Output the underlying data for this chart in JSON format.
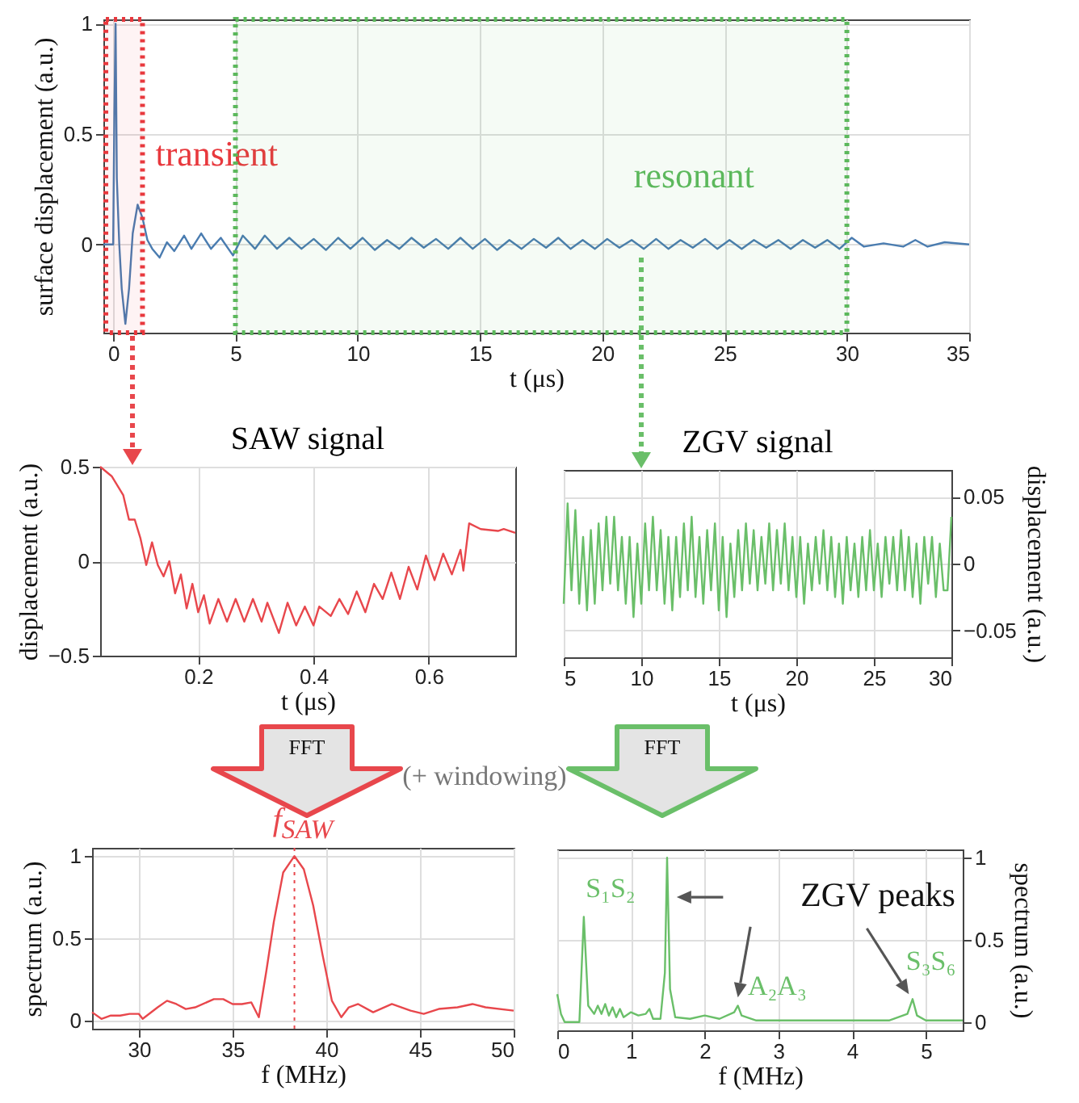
{
  "chart_data": [
    {
      "type": "line",
      "xlabel": "t (μs)",
      "ylabel": "surface displacement (a.u.)",
      "xlim": [
        -0.4,
        35
      ],
      "ylim": [
        -0.4,
        1.02
      ],
      "xticks": [
        0,
        5,
        10,
        15,
        20,
        25,
        30,
        35
      ],
      "yticks": [
        0,
        0.5,
        1
      ],
      "grid": true,
      "series": [
        {
          "color": "#4a7cb0",
          "x": [
            -0.4,
            0,
            0.05,
            0.1,
            0.15,
            0.25,
            0.35,
            0.5,
            0.65,
            0.8,
            1.0,
            1.2,
            1.4,
            1.6,
            1.9,
            2.2,
            2.5,
            2.9,
            3.2,
            3.6,
            4.0,
            4.4,
            4.9,
            5.3,
            5.8,
            6.2,
            6.7,
            7.2,
            7.7,
            8.2,
            8.7,
            9.2,
            9.7,
            10.2,
            10.7,
            11.2,
            11.7,
            12.2,
            12.7,
            13.2,
            13.7,
            14.2,
            14.7,
            15.2,
            15.7,
            16.2,
            16.7,
            17.2,
            17.7,
            18.2,
            18.7,
            19.2,
            19.7,
            20.2,
            20.7,
            21.2,
            21.7,
            22.2,
            22.7,
            23.2,
            23.7,
            24.2,
            24.7,
            25.2,
            25.7,
            26.2,
            26.7,
            27.2,
            27.7,
            28.2,
            28.7,
            29.2,
            29.7,
            30.2,
            30.7,
            31.5,
            32.3,
            32.8,
            33.3,
            34,
            35
          ],
          "values": [
            0,
            0,
            0.6,
            1.0,
            0.3,
            0,
            -0.2,
            -0.36,
            -0.2,
            0.05,
            0.18,
            0.12,
            0.02,
            -0.02,
            -0.06,
            0.01,
            -0.03,
            0.04,
            -0.02,
            0.05,
            -0.02,
            0.03,
            -0.05,
            0.04,
            -0.02,
            0.04,
            -0.02,
            0.03,
            -0.02,
            0.025,
            -0.025,
            0.03,
            -0.02,
            0.03,
            -0.025,
            0.02,
            -0.02,
            0.03,
            -0.015,
            0.025,
            -0.02,
            0.03,
            -0.02,
            0.025,
            -0.025,
            0.02,
            -0.02,
            0.025,
            -0.015,
            0.03,
            -0.02,
            0.02,
            -0.02,
            0.025,
            -0.015,
            0.02,
            -0.02,
            0.025,
            -0.02,
            0.02,
            -0.015,
            0.025,
            -0.02,
            0.02,
            -0.02,
            0.02,
            -0.015,
            0.02,
            -0.02,
            0.02,
            -0.015,
            0.02,
            -0.02,
            0.03,
            -0.01,
            0.005,
            -0.01,
            0.02,
            -0.01,
            0.01,
            0
          ]
        }
      ],
      "bands": [
        {
          "axis": "x",
          "from": -0.3,
          "to": 1.2,
          "label": "transient",
          "color": "#e8383d"
        },
        {
          "axis": "x",
          "from": 5,
          "to": 30,
          "label": "resonant",
          "color": "#5cb85c"
        }
      ]
    },
    {
      "type": "line",
      "title": "SAW signal",
      "xlabel": "t (μs)",
      "ylabel": "displacement (a.u.)",
      "xlim": [
        0.03,
        0.75
      ],
      "ylim": [
        -0.5,
        0.5
      ],
      "xticks": [
        0.2,
        0.4,
        0.6
      ],
      "yticks": [
        -0.5,
        0,
        0.5
      ],
      "grid": true,
      "annotations": [
        "FFT",
        "(+ windowing)"
      ],
      "series": [
        {
          "color": "#e8474c",
          "x": [
            0.03,
            0.05,
            0.07,
            0.08,
            0.09,
            0.1,
            0.11,
            0.12,
            0.13,
            0.14,
            0.15,
            0.16,
            0.17,
            0.18,
            0.19,
            0.2,
            0.21,
            0.22,
            0.235,
            0.25,
            0.265,
            0.28,
            0.295,
            0.31,
            0.32,
            0.34,
            0.355,
            0.37,
            0.385,
            0.4,
            0.41,
            0.43,
            0.445,
            0.46,
            0.475,
            0.49,
            0.505,
            0.52,
            0.535,
            0.55,
            0.565,
            0.58,
            0.595,
            0.61,
            0.625,
            0.64,
            0.655,
            0.66,
            0.67,
            0.69,
            0.72,
            0.73,
            0.75
          ],
          "values": [
            0.5,
            0.45,
            0.35,
            0.22,
            0.22,
            0.12,
            -0.02,
            0.1,
            -0.02,
            -0.08,
            0.0,
            -0.17,
            -0.07,
            -0.25,
            -0.12,
            -0.27,
            -0.18,
            -0.33,
            -0.2,
            -0.32,
            -0.2,
            -0.32,
            -0.2,
            -0.32,
            -0.22,
            -0.38,
            -0.22,
            -0.34,
            -0.24,
            -0.34,
            -0.24,
            -0.29,
            -0.2,
            -0.28,
            -0.16,
            -0.27,
            -0.12,
            -0.2,
            -0.06,
            -0.2,
            -0.03,
            -0.15,
            0.03,
            -0.1,
            0.04,
            -0.07,
            0.06,
            -0.05,
            0.2,
            0.17,
            0.16,
            0.17,
            0.15
          ]
        }
      ]
    },
    {
      "type": "line",
      "title": "ZGV signal",
      "xlabel": "t (μs)",
      "ylabel": "displacement (a.u.)",
      "xlim": [
        5,
        30
      ],
      "ylim": [
        -0.07,
        0.07
      ],
      "xticks": [
        5,
        10,
        15,
        20,
        25,
        30
      ],
      "yticks": [
        -0.05,
        0,
        0.05
      ],
      "grid": true,
      "annotations": [
        "FFT"
      ],
      "series": [
        {
          "color": "#6abf69",
          "x": [
            5,
            5.25,
            5.5,
            5.75,
            6,
            6.25,
            6.5,
            6.75,
            7,
            7.25,
            7.5,
            7.75,
            8,
            8.25,
            8.5,
            8.75,
            9,
            9.25,
            9.5,
            9.75,
            10,
            10.25,
            10.5,
            10.75,
            11,
            11.25,
            11.5,
            11.75,
            12,
            12.25,
            12.5,
            12.75,
            13,
            13.25,
            13.5,
            13.75,
            14,
            14.25,
            14.5,
            14.75,
            15,
            15.25,
            15.5,
            15.75,
            16,
            16.25,
            16.5,
            16.75,
            17,
            17.25,
            17.5,
            17.75,
            18,
            18.25,
            18.5,
            18.75,
            19,
            19.25,
            19.5,
            19.75,
            20,
            20.25,
            20.5,
            20.75,
            21,
            21.25,
            21.5,
            21.75,
            22,
            22.25,
            22.5,
            22.75,
            23,
            23.25,
            23.5,
            23.75,
            24,
            24.25,
            24.5,
            24.75,
            25,
            25.25,
            25.5,
            25.75,
            26,
            26.25,
            26.5,
            26.75,
            27,
            27.25,
            27.5,
            27.75,
            28,
            28.25,
            28.5,
            28.75,
            29,
            29.25,
            29.5,
            29.75,
            30
          ],
          "values": [
            -0.03,
            0.045,
            -0.02,
            0.04,
            -0.03,
            0.02,
            -0.035,
            0.025,
            -0.03,
            0.03,
            -0.02,
            0.035,
            -0.015,
            0.035,
            -0.02,
            0.02,
            -0.03,
            0.02,
            -0.04,
            0.015,
            -0.03,
            0.03,
            -0.02,
            0.035,
            -0.02,
            0.025,
            -0.03,
            0.02,
            -0.035,
            0.02,
            -0.025,
            0.03,
            -0.02,
            0.035,
            -0.025,
            0.02,
            -0.03,
            0.025,
            -0.02,
            0.03,
            -0.035,
            0.02,
            -0.04,
            0.015,
            -0.025,
            0.025,
            -0.02,
            0.03,
            -0.015,
            0.025,
            -0.02,
            0.02,
            -0.015,
            0.03,
            -0.02,
            0.025,
            -0.015,
            0.03,
            -0.02,
            0.02,
            -0.025,
            0.02,
            -0.03,
            0.015,
            -0.02,
            0.02,
            -0.015,
            0.025,
            -0.02,
            0.02,
            -0.025,
            0.015,
            -0.03,
            0.02,
            -0.02,
            0.015,
            -0.025,
            0.02,
            -0.02,
            0.025,
            -0.02,
            0.015,
            -0.025,
            0.02,
            -0.015,
            0.02,
            -0.02,
            0.025,
            -0.02,
            0.02,
            -0.025,
            0.015,
            -0.03,
            0.02,
            -0.015,
            0.02,
            -0.025,
            0.015,
            -0.02,
            -0.02,
            0.035
          ]
        }
      ]
    },
    {
      "type": "line",
      "title": "f$_{SAW}$",
      "xlabel": "f (MHz)",
      "ylabel": "spectrum (a.u.)",
      "xlim": [
        27.5,
        50
      ],
      "ylim": [
        -0.05,
        1.05
      ],
      "xticks": [
        30,
        35,
        40,
        45,
        50
      ],
      "yticks": [
        0,
        0.5,
        1
      ],
      "grid": true,
      "ref_lines": [
        {
          "axis": "x",
          "value": 38.3,
          "color": "#e8474c",
          "line_style": "dotted"
        }
      ],
      "series": [
        {
          "color": "#e8474c",
          "x": [
            27.5,
            28,
            28.5,
            29,
            29.5,
            30,
            30.2,
            31,
            31.5,
            32,
            32.5,
            33,
            34,
            34.5,
            35,
            35.5,
            36,
            36.4,
            36.8,
            37.2,
            37.7,
            38.3,
            38.8,
            39.3,
            39.8,
            40.3,
            40.8,
            41.2,
            41.7,
            42.5,
            43.5,
            44.5,
            45.2,
            46,
            47,
            47.8,
            48.5,
            50
          ],
          "values": [
            0.05,
            0.01,
            0.03,
            0.03,
            0.04,
            0.04,
            0.01,
            0.08,
            0.12,
            0.1,
            0.07,
            0.08,
            0.13,
            0.13,
            0.1,
            0.1,
            0.11,
            0.02,
            0.3,
            0.6,
            0.9,
            1.0,
            0.92,
            0.7,
            0.4,
            0.12,
            0.02,
            0.08,
            0.1,
            0.05,
            0.1,
            0.06,
            0.04,
            0.07,
            0.08,
            0.1,
            0.08,
            0.06
          ]
        }
      ]
    },
    {
      "type": "line",
      "xlabel": "f (MHz)",
      "ylabel": "spectrum (a.u.)",
      "xlim": [
        0,
        5.5
      ],
      "ylim": [
        -0.05,
        1.05
      ],
      "xticks": [
        0,
        1,
        2,
        3,
        4,
        5
      ],
      "yticks": [
        0,
        0.5,
        1
      ],
      "grid": true,
      "annotations": [
        "S₁S₂",
        "ZGV peaks",
        "A₂A₃",
        "S₃S₆"
      ],
      "series": [
        {
          "color": "#6abf69",
          "x": [
            0,
            0.05,
            0.1,
            0.3,
            0.36,
            0.42,
            0.5,
            0.55,
            0.6,
            0.65,
            0.7,
            0.75,
            0.8,
            0.85,
            0.9,
            1.0,
            1.1,
            1.2,
            1.25,
            1.3,
            1.4,
            1.46,
            1.49,
            1.53,
            1.6,
            1.8,
            2.0,
            2.2,
            2.4,
            2.45,
            2.5,
            2.7,
            3.0,
            3.5,
            4.0,
            4.5,
            4.75,
            4.82,
            4.88,
            5.0,
            5.5
          ],
          "values": [
            0.17,
            0.05,
            0.0,
            0.0,
            0.64,
            0.1,
            0.05,
            0.1,
            0.05,
            0.11,
            0.04,
            0.09,
            0.03,
            0.08,
            0.03,
            0.06,
            0.04,
            0.05,
            0.08,
            0.02,
            0.02,
            0.3,
            1.0,
            0.2,
            0.03,
            0.02,
            0.04,
            0.02,
            0.06,
            0.1,
            0.04,
            0.01,
            0.01,
            0.01,
            0.01,
            0.01,
            0.05,
            0.14,
            0.04,
            0.01,
            0.01
          ]
        }
      ]
    }
  ]
}
